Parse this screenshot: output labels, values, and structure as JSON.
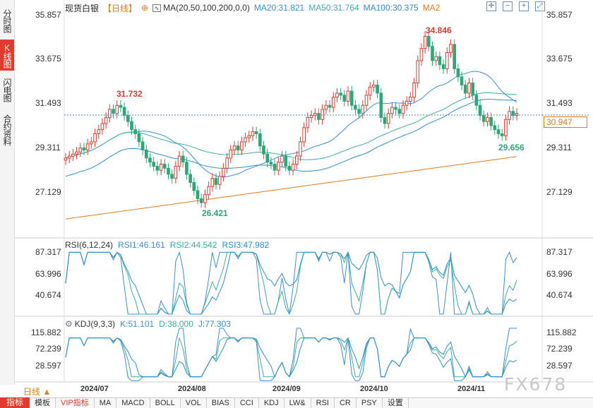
{
  "sidebar": {
    "tabs": [
      {
        "label": "分时图",
        "active": false
      },
      {
        "label": "K线图",
        "active": true
      },
      {
        "label": "闪电图",
        "active": false
      },
      {
        "label": "合约资料",
        "active": false
      }
    ]
  },
  "header": {
    "title": "现货白银",
    "period": "【日线】",
    "ma_params": "MA(20,50,100,200,0,0)",
    "ma20": "MA20:31.821",
    "ma50": "MA50:31.764",
    "ma100": "MA100:30.375",
    "ma200": "MA2"
  },
  "colors": {
    "up": "#e03b2e",
    "down": "#2aa876",
    "ma20": "#3a8fd8",
    "ma50": "#3cb09a",
    "ma100": "#2a8fd0",
    "ma200": "#e07b1a"
  },
  "main_chart": {
    "y_ticks": [
      "35.857",
      "33.675",
      "31.493",
      "29.311",
      "27.129"
    ],
    "current_price": "30.947",
    "annotations": {
      "high1": "31.732",
      "high2": "34.846",
      "low1": "26.421",
      "low2": "29.656"
    }
  },
  "rsi": {
    "label": "RSI(6,12,24)",
    "rsi1": "RSI1:46.161",
    "rsi2": "RSI2:44.542",
    "rsi3": "RSI3:47.982",
    "y_ticks": [
      "87.317",
      "63.996",
      "40.674"
    ]
  },
  "kdj": {
    "label": "KDJ(9,3,3)",
    "k": "K:51.101",
    "d": "D:38.000",
    "j": "J:77.303",
    "y_ticks": [
      "115.882",
      "72.239",
      "28.597"
    ]
  },
  "x_axis": [
    "2024/07",
    "2024/08",
    "2024/09",
    "2024/10",
    "2024/11"
  ],
  "bottom": {
    "period_label": "日线 ▲",
    "indicator_btn": "指标",
    "tabs": [
      "模板",
      "VIP指标",
      "MA",
      "MACD",
      "BOLL",
      "VOL",
      "BIAS",
      "CCI",
      "KDJ",
      "LW&",
      "RSI",
      "CR",
      "PSY",
      "设置"
    ]
  },
  "watermark": "FX678",
  "chart_data": {
    "type": "candlestick",
    "closes": [
      28.8,
      28.9,
      29.0,
      29.1,
      29.3,
      29.2,
      29.5,
      29.6,
      30.0,
      30.2,
      30.5,
      30.8,
      31.2,
      31.0,
      31.4,
      31.3,
      30.9,
      30.6,
      30.2,
      30.0,
      29.6,
      29.2,
      28.8,
      28.6,
      28.4,
      28.2,
      28.5,
      28.3,
      28.0,
      27.8,
      28.4,
      28.9,
      28.6,
      28.0,
      27.6,
      27.2,
      26.8,
      26.6,
      27.0,
      27.4,
      27.8,
      27.5,
      27.9,
      28.3,
      28.8,
      29.2,
      29.4,
      29.2,
      29.6,
      29.8,
      29.9,
      30.1,
      30.0,
      29.4,
      29.0,
      28.6,
      28.5,
      28.2,
      28.6,
      28.9,
      28.4,
      28.2,
      28.5,
      28.9,
      29.6,
      30.3,
      30.8,
      30.9,
      31.0,
      30.7,
      31.2,
      31.4,
      31.3,
      31.8,
      32.0,
      31.9,
      31.6,
      32.1,
      31.4,
      31.2,
      31.0,
      31.4,
      31.9,
      32.3,
      32.4,
      32.0,
      30.8,
      30.5,
      31.0,
      31.3,
      31.2,
      31.0,
      31.4,
      31.6,
      31.8,
      32.5,
      33.6,
      34.2,
      34.8,
      34.3,
      33.6,
      33.8,
      33.4,
      33.2,
      34.0,
      34.4,
      33.2,
      32.8,
      32.4,
      32.0,
      32.5,
      31.9,
      31.4,
      30.9,
      30.6,
      30.8,
      30.4,
      30.2,
      30.0,
      29.9,
      30.7,
      31.1,
      30.9,
      31.0
    ]
  }
}
